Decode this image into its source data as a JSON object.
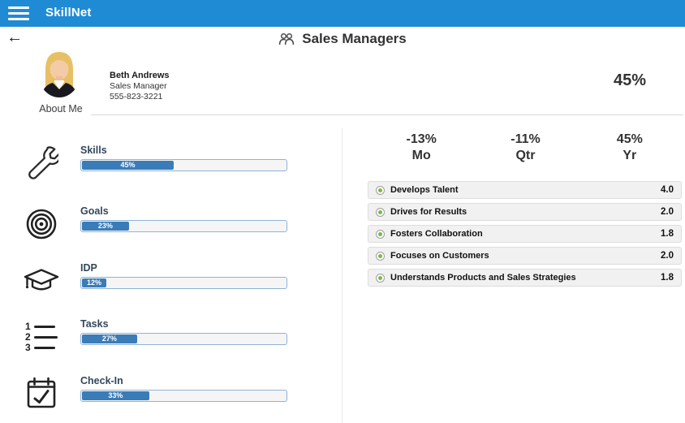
{
  "app": {
    "name": "SkillNet"
  },
  "nav": {
    "back_icon": "←"
  },
  "page": {
    "title": "Sales Managers"
  },
  "profile": {
    "name": "Beth Andrews",
    "role": "Sales Manager",
    "phone": "555-823-3221",
    "tab_label": "About Me",
    "overall_score": "45%"
  },
  "left_items": [
    {
      "label": "Skills",
      "percent": 45,
      "percent_label": "45%",
      "icon": "wrench-icon"
    },
    {
      "label": "Goals",
      "percent": 23,
      "percent_label": "23%",
      "icon": "target-icon"
    },
    {
      "label": "IDP",
      "percent": 12,
      "percent_label": "12%",
      "icon": "graduation-cap-icon"
    },
    {
      "label": "Tasks",
      "percent": 27,
      "percent_label": "27%",
      "icon": "numbered-list-icon"
    },
    {
      "label": "Check-In",
      "percent": 33,
      "percent_label": "33%",
      "icon": "calendar-check-icon"
    }
  ],
  "stats": [
    {
      "value": "-13%",
      "period": "Mo"
    },
    {
      "value": "-11%",
      "period": "Qtr"
    },
    {
      "value": "45%",
      "period": "Yr"
    }
  ],
  "competencies": [
    {
      "name": "Develops Talent",
      "score": "4.0"
    },
    {
      "name": "Drives for Results",
      "score": "2.0"
    },
    {
      "name": "Fosters Collaboration",
      "score": "1.8"
    },
    {
      "name": "Focuses on Customers",
      "score": "2.0"
    },
    {
      "name": "Understands Products and Sales Strategies",
      "score": "1.8"
    }
  ],
  "colors": {
    "topbar_blue": "#1F8BD5",
    "progress_fill": "#3A7CB8",
    "progress_border": "#8FB4D6",
    "accent_green": "#76BC43",
    "row_bg": "#f1f1f1"
  }
}
